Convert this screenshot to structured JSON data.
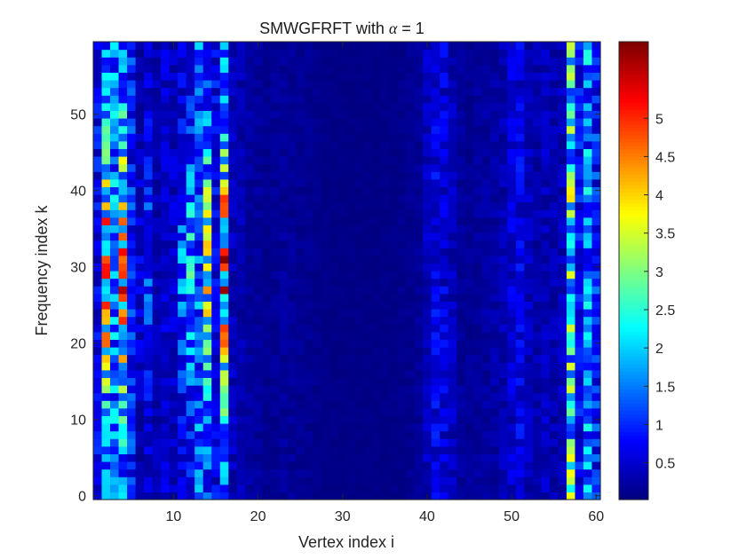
{
  "chart_data": {
    "type": "heatmap",
    "title": "SMWGFRFT with α = 1",
    "title_parts": [
      "SMWGFRFT with ",
      "α",
      " = 1"
    ],
    "xlabel": "Vertex index i",
    "ylabel": "Frequency index k",
    "x": {
      "min": 1,
      "max": 60,
      "ticks": [
        10,
        20,
        30,
        40,
        50,
        60
      ],
      "tick_labels": [
        "10",
        "20",
        "30",
        "40",
        "50",
        "60"
      ]
    },
    "y": {
      "min": 0,
      "max": 59,
      "ticks": [
        0,
        10,
        20,
        30,
        40,
        50
      ],
      "tick_labels": [
        "0",
        "10",
        "20",
        "30",
        "40",
        "50"
      ]
    },
    "colorbar": {
      "colormap": "jet",
      "limits": [
        0.02,
        6.0
      ],
      "ticks": [
        0.5,
        1,
        1.5,
        2,
        2.5,
        3,
        3.5,
        4,
        4.5,
        5
      ],
      "tick_labels": [
        "0.5",
        "1",
        "1.5",
        "2",
        "2.5",
        "3",
        "3.5",
        "4",
        "4.5",
        "5"
      ]
    },
    "column_peak_values": [
      1.2,
      5.6,
      2.4,
      5.8,
      1.5,
      0.9,
      1.8,
      0.5,
      0.8,
      0.7,
      2.1,
      2.8,
      2.1,
      4.4,
      1.1,
      5.9,
      0.6,
      0.5,
      0.35,
      0.3,
      0.2,
      0.25,
      0.3,
      0.25,
      0.22,
      0.2,
      0.15,
      0.12,
      0.1,
      0.1,
      0.1,
      0.1,
      0.1,
      0.1,
      0.12,
      0.12,
      0.15,
      0.2,
      0.25,
      0.6,
      1.0,
      0.9,
      0.6,
      0.3,
      0.25,
      0.3,
      0.35,
      0.4,
      0.5,
      0.8,
      1.0,
      0.6,
      0.45,
      0.6,
      0.5,
      0.6,
      4.0,
      1.2,
      2.5,
      1.5
    ],
    "columns_with_row_variation": [
      2,
      4,
      6,
      7,
      11,
      12,
      14,
      16
    ],
    "note_values": "Approximate magnitudes per vertex column (peak), read from the colorbar; the strongest values (about 5 to 6) occur around vertices 2, 4, 14 and 16 near frequency indices 20-40."
  }
}
